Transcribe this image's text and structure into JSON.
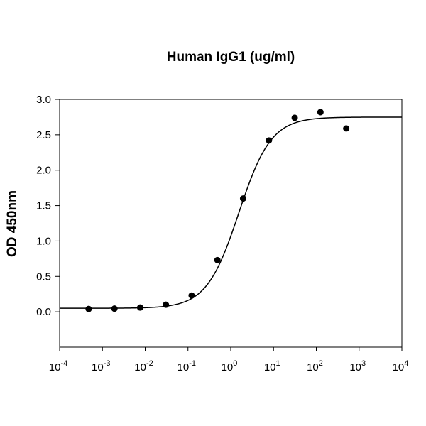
{
  "chart_data": {
    "type": "scatter",
    "title": "Human IgG1 (ug/ml)",
    "xlabel": "",
    "ylabel": "OD 450nm",
    "xscale": "log",
    "xlim": [
      0.0001,
      10000
    ],
    "ylim": [
      -0.5,
      3.0
    ],
    "xticks": [
      -4,
      -3,
      -2,
      -1,
      0,
      1,
      2,
      3,
      4
    ],
    "yticks": [
      "0.0",
      "0.5",
      "1.0",
      "1.5",
      "2.0",
      "2.5",
      "3.0"
    ],
    "grid": false,
    "fit_line": "4-parameter logistic curve",
    "colors": {
      "points": "#000000",
      "line": "#000000"
    },
    "x": [
      0.000477,
      0.00191,
      0.00763,
      0.0305,
      0.122,
      0.488,
      1.95,
      7.81,
      31.25,
      125,
      500
    ],
    "y": [
      0.04,
      0.045,
      0.06,
      0.1,
      0.23,
      0.73,
      1.6,
      2.42,
      2.74,
      2.82,
      2.59
    ]
  }
}
